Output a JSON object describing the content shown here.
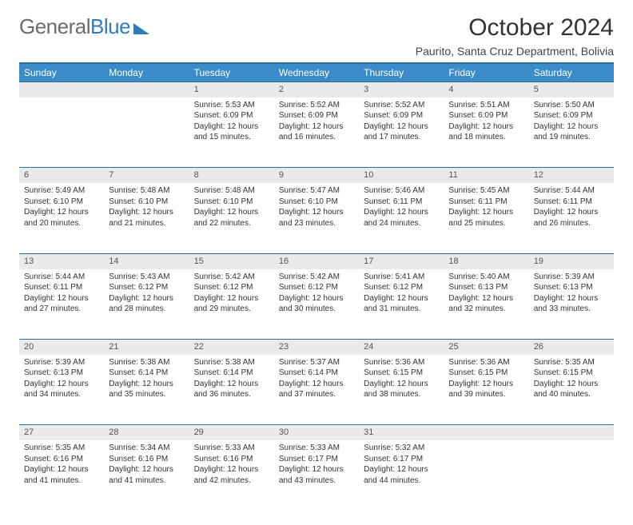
{
  "logo": {
    "text1": "General",
    "text2": "Blue"
  },
  "title": "October 2024",
  "location": "Paurito, Santa Cruz Department, Bolivia",
  "colors": {
    "header_bg": "#3b8bc9",
    "header_border": "#2c6ca0",
    "daynum_bg": "#eaeaea",
    "text": "#333333",
    "logo_gray": "#6b6b6b",
    "logo_blue": "#2f7bbf"
  },
  "daysOfWeek": [
    "Sunday",
    "Monday",
    "Tuesday",
    "Wednesday",
    "Thursday",
    "Friday",
    "Saturday"
  ],
  "weeks": [
    [
      null,
      null,
      {
        "n": "1",
        "sunrise": "5:53 AM",
        "sunset": "6:09 PM",
        "daylight": "12 hours and 15 minutes."
      },
      {
        "n": "2",
        "sunrise": "5:52 AM",
        "sunset": "6:09 PM",
        "daylight": "12 hours and 16 minutes."
      },
      {
        "n": "3",
        "sunrise": "5:52 AM",
        "sunset": "6:09 PM",
        "daylight": "12 hours and 17 minutes."
      },
      {
        "n": "4",
        "sunrise": "5:51 AM",
        "sunset": "6:09 PM",
        "daylight": "12 hours and 18 minutes."
      },
      {
        "n": "5",
        "sunrise": "5:50 AM",
        "sunset": "6:09 PM",
        "daylight": "12 hours and 19 minutes."
      }
    ],
    [
      {
        "n": "6",
        "sunrise": "5:49 AM",
        "sunset": "6:10 PM",
        "daylight": "12 hours and 20 minutes."
      },
      {
        "n": "7",
        "sunrise": "5:48 AM",
        "sunset": "6:10 PM",
        "daylight": "12 hours and 21 minutes."
      },
      {
        "n": "8",
        "sunrise": "5:48 AM",
        "sunset": "6:10 PM",
        "daylight": "12 hours and 22 minutes."
      },
      {
        "n": "9",
        "sunrise": "5:47 AM",
        "sunset": "6:10 PM",
        "daylight": "12 hours and 23 minutes."
      },
      {
        "n": "10",
        "sunrise": "5:46 AM",
        "sunset": "6:11 PM",
        "daylight": "12 hours and 24 minutes."
      },
      {
        "n": "11",
        "sunrise": "5:45 AM",
        "sunset": "6:11 PM",
        "daylight": "12 hours and 25 minutes."
      },
      {
        "n": "12",
        "sunrise": "5:44 AM",
        "sunset": "6:11 PM",
        "daylight": "12 hours and 26 minutes."
      }
    ],
    [
      {
        "n": "13",
        "sunrise": "5:44 AM",
        "sunset": "6:11 PM",
        "daylight": "12 hours and 27 minutes."
      },
      {
        "n": "14",
        "sunrise": "5:43 AM",
        "sunset": "6:12 PM",
        "daylight": "12 hours and 28 minutes."
      },
      {
        "n": "15",
        "sunrise": "5:42 AM",
        "sunset": "6:12 PM",
        "daylight": "12 hours and 29 minutes."
      },
      {
        "n": "16",
        "sunrise": "5:42 AM",
        "sunset": "6:12 PM",
        "daylight": "12 hours and 30 minutes."
      },
      {
        "n": "17",
        "sunrise": "5:41 AM",
        "sunset": "6:12 PM",
        "daylight": "12 hours and 31 minutes."
      },
      {
        "n": "18",
        "sunrise": "5:40 AM",
        "sunset": "6:13 PM",
        "daylight": "12 hours and 32 minutes."
      },
      {
        "n": "19",
        "sunrise": "5:39 AM",
        "sunset": "6:13 PM",
        "daylight": "12 hours and 33 minutes."
      }
    ],
    [
      {
        "n": "20",
        "sunrise": "5:39 AM",
        "sunset": "6:13 PM",
        "daylight": "12 hours and 34 minutes."
      },
      {
        "n": "21",
        "sunrise": "5:38 AM",
        "sunset": "6:14 PM",
        "daylight": "12 hours and 35 minutes."
      },
      {
        "n": "22",
        "sunrise": "5:38 AM",
        "sunset": "6:14 PM",
        "daylight": "12 hours and 36 minutes."
      },
      {
        "n": "23",
        "sunrise": "5:37 AM",
        "sunset": "6:14 PM",
        "daylight": "12 hours and 37 minutes."
      },
      {
        "n": "24",
        "sunrise": "5:36 AM",
        "sunset": "6:15 PM",
        "daylight": "12 hours and 38 minutes."
      },
      {
        "n": "25",
        "sunrise": "5:36 AM",
        "sunset": "6:15 PM",
        "daylight": "12 hours and 39 minutes."
      },
      {
        "n": "26",
        "sunrise": "5:35 AM",
        "sunset": "6:15 PM",
        "daylight": "12 hours and 40 minutes."
      }
    ],
    [
      {
        "n": "27",
        "sunrise": "5:35 AM",
        "sunset": "6:16 PM",
        "daylight": "12 hours and 41 minutes."
      },
      {
        "n": "28",
        "sunrise": "5:34 AM",
        "sunset": "6:16 PM",
        "daylight": "12 hours and 41 minutes."
      },
      {
        "n": "29",
        "sunrise": "5:33 AM",
        "sunset": "6:16 PM",
        "daylight": "12 hours and 42 minutes."
      },
      {
        "n": "30",
        "sunrise": "5:33 AM",
        "sunset": "6:17 PM",
        "daylight": "12 hours and 43 minutes."
      },
      {
        "n": "31",
        "sunrise": "5:32 AM",
        "sunset": "6:17 PM",
        "daylight": "12 hours and 44 minutes."
      },
      null,
      null
    ]
  ],
  "labels": {
    "sunrise": "Sunrise:",
    "sunset": "Sunset:",
    "daylight": "Daylight:"
  }
}
